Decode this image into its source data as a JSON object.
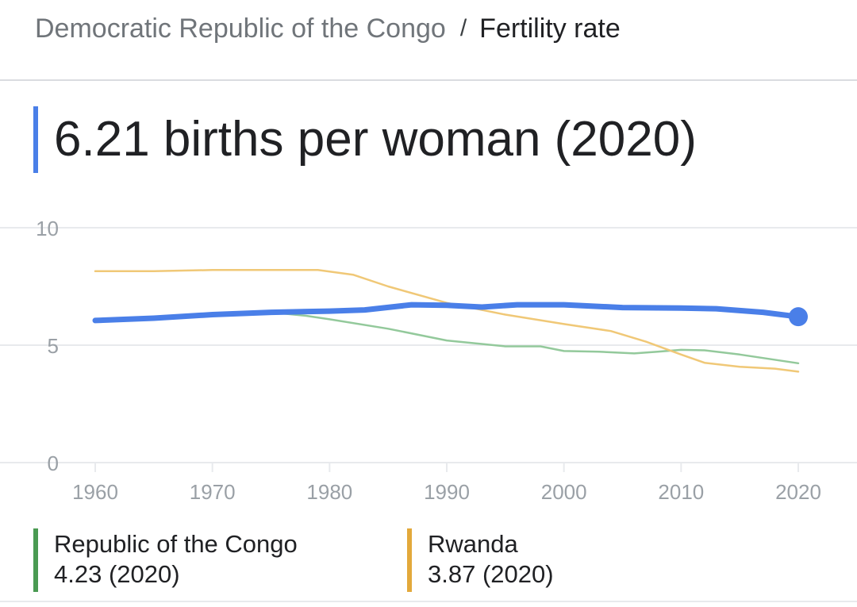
{
  "breadcrumb": {
    "parent": "Democratic Republic of the Congo",
    "separator": "/",
    "current": "Fertility rate"
  },
  "headline": "6.21 births per woman (2020)",
  "colors": {
    "primary": "#4a7fe8",
    "congo": "#93c99b",
    "rwanda": "#f0c877",
    "congo_legend": "#4a9a52",
    "rwanda_legend": "#e3a93b",
    "grid": "#e8eaed",
    "tick": "#9aa0a6"
  },
  "legend": [
    {
      "name": "Republic of the Congo",
      "value": "4.23 (2020)",
      "color": "#4a9a52"
    },
    {
      "name": "Rwanda",
      "value": "3.87 (2020)",
      "color": "#e3a93b"
    }
  ],
  "chart_data": {
    "type": "line",
    "title": "",
    "xlabel": "",
    "ylabel": "",
    "xlim": [
      1960,
      2020
    ],
    "ylim": [
      0,
      10
    ],
    "xticks": [
      "1960",
      "1970",
      "1980",
      "1990",
      "2000",
      "2010",
      "2020"
    ],
    "yticks": [
      "0",
      "5",
      "10"
    ],
    "grid": true,
    "legend_position": "bottom",
    "series": [
      {
        "name": "Democratic Republic of the Congo",
        "color": "#4a7fe8",
        "points": [
          [
            1960,
            6.05
          ],
          [
            1965,
            6.15
          ],
          [
            1970,
            6.3
          ],
          [
            1975,
            6.4
          ],
          [
            1980,
            6.45
          ],
          [
            1983,
            6.5
          ],
          [
            1987,
            6.72
          ],
          [
            1990,
            6.7
          ],
          [
            1993,
            6.62
          ],
          [
            1996,
            6.72
          ],
          [
            2000,
            6.72
          ],
          [
            2005,
            6.6
          ],
          [
            2010,
            6.58
          ],
          [
            2013,
            6.55
          ],
          [
            2017,
            6.4
          ],
          [
            2020,
            6.21
          ]
        ]
      },
      {
        "name": "Republic of the Congo",
        "color": "#93c99b",
        "points": [
          [
            1975,
            6.4
          ],
          [
            1978,
            6.25
          ],
          [
            1980,
            6.1
          ],
          [
            1985,
            5.7
          ],
          [
            1990,
            5.2
          ],
          [
            1995,
            4.95
          ],
          [
            1998,
            4.95
          ],
          [
            2000,
            4.75
          ],
          [
            2003,
            4.72
          ],
          [
            2006,
            4.65
          ],
          [
            2008,
            4.72
          ],
          [
            2010,
            4.8
          ],
          [
            2012,
            4.78
          ],
          [
            2015,
            4.6
          ],
          [
            2020,
            4.23
          ]
        ]
      },
      {
        "name": "Rwanda",
        "color": "#f0c877",
        "points": [
          [
            1960,
            8.15
          ],
          [
            1965,
            8.15
          ],
          [
            1970,
            8.2
          ],
          [
            1975,
            8.2
          ],
          [
            1979,
            8.2
          ],
          [
            1982,
            8.0
          ],
          [
            1985,
            7.5
          ],
          [
            1990,
            6.8
          ],
          [
            1995,
            6.3
          ],
          [
            2000,
            5.9
          ],
          [
            2004,
            5.6
          ],
          [
            2007,
            5.15
          ],
          [
            2010,
            4.6
          ],
          [
            2012,
            4.25
          ],
          [
            2015,
            4.08
          ],
          [
            2018,
            4.0
          ],
          [
            2020,
            3.87
          ]
        ]
      }
    ],
    "marker": {
      "series": "Democratic Republic of the Congo",
      "x": 2020,
      "y": 6.21
    }
  }
}
